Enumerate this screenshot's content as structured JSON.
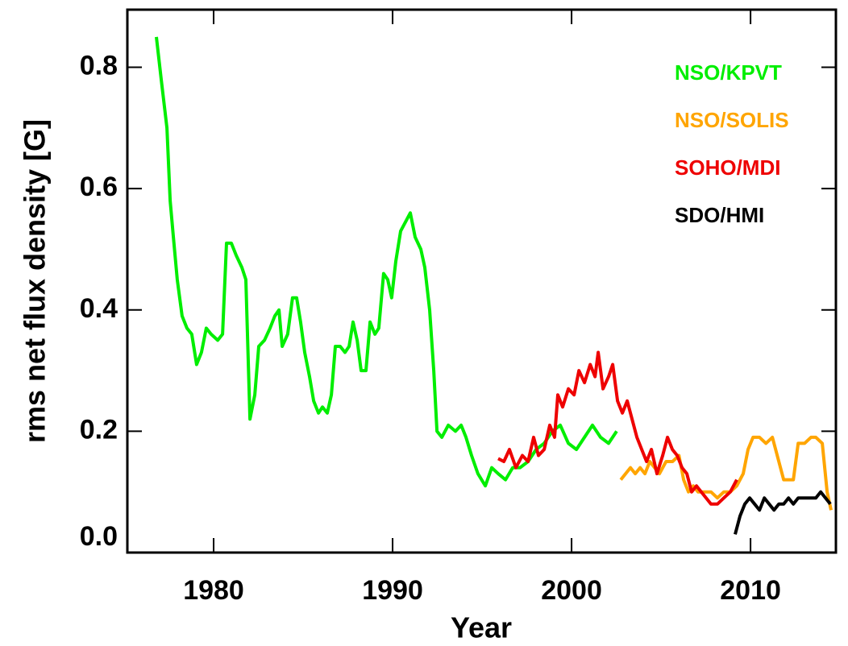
{
  "chart_data": {
    "type": "line",
    "x_label": "Year",
    "y_label": "rms net flux density [G]",
    "xlim": [
      1975.18,
      2014.77
    ],
    "ylim": [
      0,
      0.895
    ],
    "xticks": [
      1980,
      1990,
      2000,
      2010
    ],
    "yticks": [
      {
        "value": 0,
        "label": "0.0"
      },
      0.2,
      0.4,
      0.6,
      0.8
    ],
    "legend": "top-right",
    "series": [
      {
        "name": "NSO/KPVT",
        "color": "#00ee00",
        "x": [
          1976.8,
          1977.07,
          1977.39,
          1977.57,
          1977.75,
          1977.97,
          1978.24,
          1978.51,
          1978.78,
          1979.05,
          1979.32,
          1979.59,
          1979.86,
          1980.23,
          1980.5,
          1980.72,
          1980.99,
          1981.26,
          1981.58,
          1981.8,
          1982.03,
          1982.3,
          1982.52,
          1982.84,
          1983.15,
          1983.42,
          1983.65,
          1983.83,
          1984.14,
          1984.41,
          1984.64,
          1984.86,
          1985.09,
          1985.36,
          1985.59,
          1985.86,
          1986.08,
          1986.35,
          1986.58,
          1986.8,
          1987.07,
          1987.34,
          1987.57,
          1987.79,
          1988.02,
          1988.24,
          1988.51,
          1988.74,
          1989.01,
          1989.23,
          1989.5,
          1989.73,
          1989.95,
          1990.18,
          1990.45,
          1990.99,
          1991.26,
          1991.58,
          1991.8,
          1992.07,
          1992.3,
          1992.48,
          1992.75,
          1993.11,
          1993.51,
          1993.83,
          1994.1,
          1994.41,
          1994.77,
          1995.18,
          1995.54,
          1995.9,
          1996.31,
          1996.71,
          1997.12,
          1997.57,
          1998.02,
          1998.47,
          1998.92,
          1999.37,
          1999.82,
          2000.27,
          2000.72,
          2001.17,
          2001.62,
          2002.07,
          2002.52
        ],
        "values": [
          0.85,
          0.78,
          0.7,
          0.58,
          0.52,
          0.45,
          0.39,
          0.37,
          0.36,
          0.31,
          0.33,
          0.37,
          0.36,
          0.35,
          0.36,
          0.51,
          0.51,
          0.49,
          0.47,
          0.45,
          0.22,
          0.26,
          0.34,
          0.35,
          0.37,
          0.39,
          0.4,
          0.34,
          0.36,
          0.42,
          0.42,
          0.38,
          0.33,
          0.29,
          0.25,
          0.23,
          0.24,
          0.23,
          0.26,
          0.34,
          0.34,
          0.33,
          0.34,
          0.38,
          0.35,
          0.3,
          0.3,
          0.38,
          0.36,
          0.37,
          0.46,
          0.45,
          0.42,
          0.48,
          0.53,
          0.56,
          0.52,
          0.5,
          0.47,
          0.4,
          0.3,
          0.2,
          0.19,
          0.21,
          0.2,
          0.21,
          0.19,
          0.16,
          0.13,
          0.11,
          0.14,
          0.13,
          0.12,
          0.14,
          0.14,
          0.15,
          0.17,
          0.18,
          0.2,
          0.21,
          0.18,
          0.17,
          0.19,
          0.21,
          0.19,
          0.18,
          0.2
        ]
      },
      {
        "name": "NSO/SOLIS",
        "color": "#ffa500",
        "x": [
          2002.75,
          2003.02,
          2003.29,
          2003.56,
          2003.83,
          2004.1,
          2004.37,
          2004.64,
          2004.91,
          2005.28,
          2005.64,
          2006.0,
          2006.26,
          2006.53,
          2006.8,
          2007.07,
          2007.43,
          2007.79,
          2008.15,
          2008.51,
          2008.87,
          2009.23,
          2009.59,
          2009.86,
          2010.14,
          2010.5,
          2010.86,
          2011.22,
          2011.58,
          2011.85,
          2012.12,
          2012.39,
          2012.66,
          2013.02,
          2013.38,
          2013.65,
          2014.01,
          2014.28,
          2014.5
        ],
        "values": [
          0.12,
          0.13,
          0.14,
          0.13,
          0.14,
          0.13,
          0.15,
          0.14,
          0.13,
          0.15,
          0.15,
          0.16,
          0.12,
          0.1,
          0.11,
          0.1,
          0.1,
          0.1,
          0.09,
          0.1,
          0.1,
          0.11,
          0.13,
          0.17,
          0.19,
          0.19,
          0.18,
          0.19,
          0.15,
          0.12,
          0.12,
          0.12,
          0.18,
          0.18,
          0.19,
          0.19,
          0.18,
          0.1,
          0.07
        ]
      },
      {
        "name": "SOHO/MDI",
        "color": "#ee0000",
        "x": [
          1995.9,
          1996.22,
          1996.53,
          1996.89,
          1997.25,
          1997.57,
          1997.88,
          1998.15,
          1998.47,
          1998.78,
          1999.05,
          1999.23,
          1999.5,
          1999.82,
          2000.14,
          2000.41,
          2000.72,
          2001.04,
          2001.31,
          2001.49,
          2001.76,
          2002.07,
          2002.3,
          2002.57,
          2002.84,
          2003.11,
          2003.38,
          2003.65,
          2003.92,
          2004.19,
          2004.46,
          2004.77,
          2005.09,
          2005.36,
          2005.63,
          2005.9,
          2006.17,
          2006.44,
          2006.71,
          2006.98,
          2007.25,
          2007.52,
          2007.79,
          2008.15,
          2008.51,
          2008.87,
          2009.23
        ],
        "values": [
          0.155,
          0.15,
          0.17,
          0.14,
          0.16,
          0.15,
          0.19,
          0.16,
          0.17,
          0.21,
          0.19,
          0.26,
          0.24,
          0.27,
          0.26,
          0.3,
          0.28,
          0.31,
          0.29,
          0.33,
          0.27,
          0.29,
          0.31,
          0.25,
          0.23,
          0.25,
          0.22,
          0.19,
          0.17,
          0.15,
          0.17,
          0.13,
          0.16,
          0.19,
          0.17,
          0.16,
          0.14,
          0.13,
          0.1,
          0.11,
          0.1,
          0.09,
          0.08,
          0.08,
          0.09,
          0.1,
          0.12
        ]
      },
      {
        "name": "SDO/HMI",
        "color": "#000000",
        "x": [
          2009.14,
          2009.41,
          2009.68,
          2009.95,
          2010.23,
          2010.5,
          2010.77,
          2011.04,
          2011.31,
          2011.58,
          2011.85,
          2012.12,
          2012.39,
          2012.66,
          2013.02,
          2013.38,
          2013.65,
          2013.92,
          2014.19,
          2014.46
        ],
        "values": [
          0.03,
          0.06,
          0.08,
          0.09,
          0.08,
          0.07,
          0.09,
          0.08,
          0.07,
          0.08,
          0.08,
          0.09,
          0.08,
          0.09,
          0.09,
          0.09,
          0.09,
          0.1,
          0.09,
          0.08
        ]
      }
    ]
  }
}
